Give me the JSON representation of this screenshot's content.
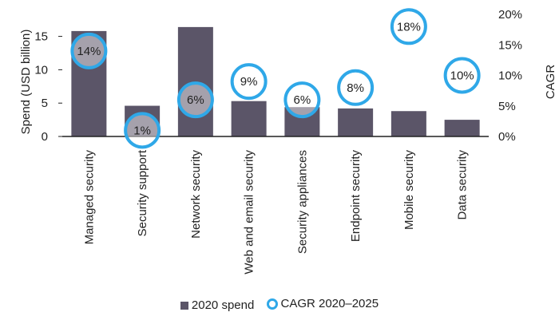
{
  "chart_data": {
    "type": "bar",
    "categories": [
      "Managed security",
      "Security support",
      "Network security",
      "Web and email security",
      "Security appliances",
      "Endpoint security",
      "Mobile security",
      "Data security"
    ],
    "series": [
      {
        "name": "2020 spend",
        "axis": "left",
        "values": [
          15.8,
          4.6,
          16.4,
          5.3,
          4.4,
          4.2,
          3.8,
          2.5
        ],
        "color": "#5b5568"
      },
      {
        "name": "CAGR 2020–2025",
        "axis": "right",
        "marker": "circle",
        "values": [
          14,
          1,
          6,
          9,
          6,
          8,
          18,
          10
        ],
        "labels": [
          "14%",
          "1%",
          "6%",
          "9%",
          "6%",
          "8%",
          "18%",
          "10%"
        ],
        "color": "#2fa8e8"
      }
    ],
    "ylabel": "Spend (USD billion)",
    "ylim": [
      0,
      18.3
    ],
    "yticks": [
      "0",
      "5",
      "10",
      "15"
    ],
    "y2label": "CAGR",
    "y2lim": [
      0,
      20
    ],
    "y2ticks": [
      "0%",
      "5%",
      "10%",
      "15%",
      "20%"
    ],
    "legend": "bottom",
    "grid": false
  }
}
